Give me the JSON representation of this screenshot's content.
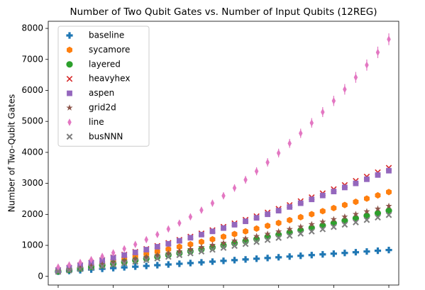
{
  "chart_data": {
    "type": "scatter",
    "title": "Number of Two Qubit Gates vs. Number of Input Qubits (12REG)",
    "y_label": "Number of Two-Qubit Gates",
    "x": [
      4,
      5,
      6,
      7,
      8,
      9,
      10,
      11,
      12,
      13,
      14,
      15,
      16,
      17,
      18,
      19,
      20,
      21,
      22,
      23,
      24,
      25,
      26,
      27,
      28,
      29,
      30,
      31,
      32,
      33,
      34
    ],
    "xlim": [
      3.1,
      34.9
    ],
    "xticks": [
      4,
      9,
      14,
      19,
      24,
      29,
      34
    ],
    "xtick_labels_shown": false,
    "ylim": [
      -280,
      8230
    ],
    "yticks": [
      0,
      1000,
      2000,
      3000,
      4000,
      5000,
      6000,
      7000,
      8000
    ],
    "grid": false,
    "legend": "upper left",
    "series": [
      {
        "name": "baseline",
        "color": "#1f77b4",
        "marker": "plus",
        "values": [
          150,
          173,
          197,
          220,
          243,
          267,
          290,
          313,
          336,
          360,
          383,
          406,
          430,
          453,
          476,
          500,
          523,
          546,
          569,
          593,
          616,
          639,
          663,
          686,
          709,
          733,
          756,
          779,
          802,
          826,
          849
        ]
      },
      {
        "name": "sycamore",
        "color": "#ff7f0e",
        "marker": "hexagon",
        "values": [
          180,
          243,
          307,
          373,
          440,
          509,
          579,
          651,
          724,
          799,
          876,
          954,
          1033,
          1114,
          1196,
          1280,
          1365,
          1452,
          1541,
          1631,
          1722,
          1815,
          1910,
          2006,
          2104,
          2203,
          2303,
          2405,
          2509,
          2614,
          2720
        ]
      },
      {
        "name": "layered",
        "color": "#2ca02c",
        "marker": "circle",
        "values": [
          160,
          207,
          256,
          306,
          357,
          409,
          462,
          517,
          573,
          631,
          689,
          749,
          810,
          872,
          936,
          1000,
          1066,
          1134,
          1202,
          1272,
          1343,
          1415,
          1488,
          1563,
          1639,
          1716,
          1795,
          1874,
          1955,
          2037,
          2120
        ]
      },
      {
        "name": "heavyhex",
        "color": "#d62728",
        "marker": "x",
        "values": [
          200,
          278,
          358,
          440,
          525,
          611,
          700,
          791,
          885,
          980,
          1078,
          1178,
          1280,
          1385,
          1491,
          1600,
          1711,
          1825,
          1940,
          2058,
          2178,
          2300,
          2425,
          2551,
          2680,
          2811,
          2945,
          3080,
          3218,
          3358,
          3500
        ]
      },
      {
        "name": "aspen",
        "color": "#9467bd",
        "marker": "square",
        "values": [
          200,
          275,
          352,
          432,
          514,
          598,
          684,
          772,
          862,
          955,
          1050,
          1147,
          1246,
          1348,
          1452,
          1558,
          1666,
          1776,
          1888,
          2003,
          2120,
          2239,
          2360,
          2484,
          2610,
          2738,
          2868,
          3000,
          3134,
          3271,
          3410
        ]
      },
      {
        "name": "grid2d",
        "color": "#8c564b",
        "marker": "star",
        "values": [
          170,
          222,
          275,
          330,
          385,
          442,
          500,
          559,
          620,
          682,
          745,
          809,
          875,
          942,
          1010,
          1080,
          1151,
          1222,
          1295,
          1370,
          1445,
          1522,
          1600,
          1679,
          1759,
          1841,
          1924,
          2007,
          2094,
          2181,
          2270
        ]
      },
      {
        "name": "line",
        "color": "#e377c2",
        "marker": "thin_diamond",
        "values": [
          300,
          368,
          448,
          540,
          645,
          761,
          890,
          1031,
          1185,
          1350,
          1528,
          1718,
          1920,
          2135,
          2361,
          2600,
          2851,
          3115,
          3391,
          3679,
          3978,
          4290,
          4615,
          4951,
          5300,
          5661,
          6034,
          6420,
          6817,
          7227,
          7650
        ],
        "errors": [
          40,
          45,
          50,
          55,
          60,
          65,
          70,
          75,
          80,
          85,
          90,
          95,
          100,
          105,
          110,
          115,
          120,
          125,
          130,
          135,
          140,
          145,
          150,
          155,
          160,
          165,
          170,
          175,
          180,
          185,
          190
        ]
      },
      {
        "name": "busNNN",
        "color": "#7f7f7f",
        "marker": "filled_x",
        "values": [
          150,
          192,
          236,
          281,
          327,
          374,
          423,
          473,
          525,
          578,
          631,
          687,
          743,
          801,
          860,
          920,
          982,
          1045,
          1109,
          1174,
          1241,
          1309,
          1378,
          1448,
          1520,
          1593,
          1667,
          1743,
          1820,
          1898,
          1980
        ]
      }
    ]
  }
}
